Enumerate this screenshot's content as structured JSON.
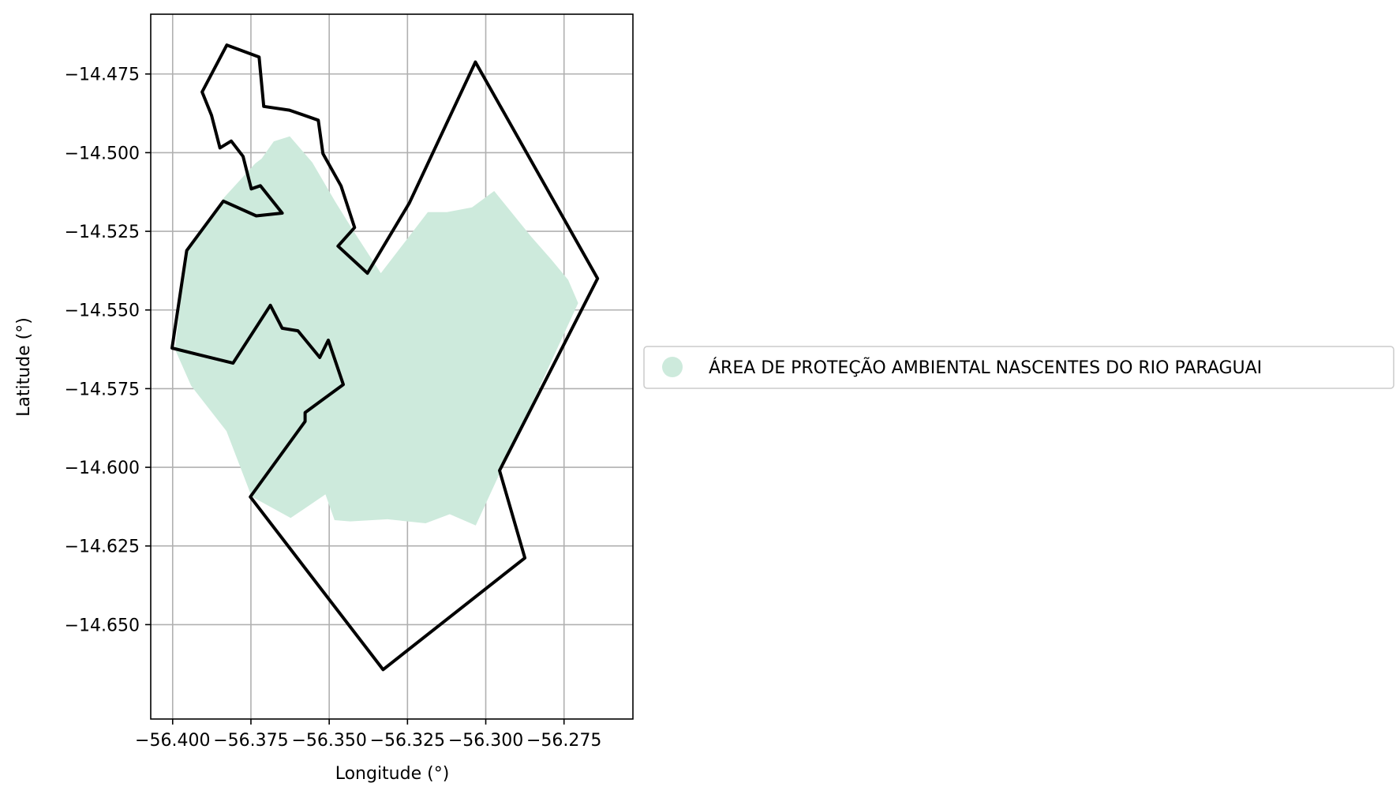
{
  "chart_data": {
    "type": "map",
    "title": "",
    "xlabel": "Longitude (°)",
    "ylabel": "Latitude (°)",
    "xlim": [
      -56.407,
      -56.253
    ],
    "ylim": [
      -14.68,
      -14.456
    ],
    "x_ticks": [
      -56.4,
      -56.375,
      -56.35,
      -56.325,
      -56.3,
      -56.275
    ],
    "x_tick_labels": [
      "−56.400",
      "−56.375",
      "−56.350",
      "−56.325",
      "−56.300",
      "−56.275"
    ],
    "y_ticks": [
      -14.475,
      -14.5,
      -14.525,
      -14.55,
      -14.575,
      -14.6,
      -14.625,
      -14.65
    ],
    "y_tick_labels": [
      "−14.475",
      "−14.500",
      "−14.525",
      "−14.550",
      "−14.575",
      "−14.600",
      "−14.625",
      "−14.650"
    ],
    "grid": true,
    "legend": {
      "placement": "right-center",
      "entries": [
        {
          "label": "ÁREA DE PROTEÇÃO AMBIENTAL NASCENTES DO RIO PARAGUAI",
          "color": "#cdeadc"
        }
      ]
    },
    "layers": [
      {
        "name": "ÁREA DE PROTEÇÃO AMBIENTAL NASCENTES DO RIO PARAGUAI",
        "kind": "filled-area",
        "color": "#cdeadc",
        "coordinates": [
          [
            -56.3716,
            -14.5019
          ],
          [
            -56.3677,
            -14.4964
          ],
          [
            -56.3626,
            -14.4948
          ],
          [
            -56.3554,
            -14.5031
          ],
          [
            -56.348,
            -14.5157
          ],
          [
            -56.3425,
            -14.5245
          ],
          [
            -56.3335,
            -14.5383
          ],
          [
            -56.3185,
            -14.5189
          ],
          [
            -56.3124,
            -14.5189
          ],
          [
            -56.3044,
            -14.5174
          ],
          [
            -56.2973,
            -14.5122
          ],
          [
            -56.2855,
            -14.5267
          ],
          [
            -56.2791,
            -14.5339
          ],
          [
            -56.2737,
            -14.5404
          ],
          [
            -56.2705,
            -14.5478
          ],
          [
            -56.3032,
            -14.6185
          ],
          [
            -56.3115,
            -14.6149
          ],
          [
            -56.3192,
            -14.6178
          ],
          [
            -56.3314,
            -14.6165
          ],
          [
            -56.3433,
            -14.6172
          ],
          [
            -56.3483,
            -14.6168
          ],
          [
            -56.3512,
            -14.6086
          ],
          [
            -56.3623,
            -14.6161
          ],
          [
            -56.3748,
            -14.6093
          ],
          [
            -56.3828,
            -14.5885
          ],
          [
            -56.3941,
            -14.5741
          ],
          [
            -56.3993,
            -14.5624
          ],
          [
            -56.3955,
            -14.5311
          ],
          [
            -56.3835,
            -14.5142
          ],
          [
            -56.3736,
            -14.5034
          ]
        ]
      },
      {
        "name": "boundary",
        "kind": "outline",
        "color": "#000000",
        "coordinates": [
          [
            -56.3827,
            -14.4658
          ],
          [
            -56.3724,
            -14.4696
          ],
          [
            -56.3709,
            -14.4853
          ],
          [
            -56.3627,
            -14.4865
          ],
          [
            -56.3535,
            -14.4897
          ],
          [
            -56.352,
            -14.5003
          ],
          [
            -56.3462,
            -14.5106
          ],
          [
            -56.3419,
            -14.5238
          ],
          [
            -56.3472,
            -14.5297
          ],
          [
            -56.3378,
            -14.5383
          ],
          [
            -56.3244,
            -14.516
          ],
          [
            -56.3033,
            -14.4712
          ],
          [
            -56.2643,
            -14.54
          ],
          [
            -56.2956,
            -14.601
          ],
          [
            -56.2875,
            -14.6288
          ],
          [
            -56.3328,
            -14.6643
          ],
          [
            -56.3752,
            -14.6094
          ],
          [
            -56.3577,
            -14.5854
          ],
          [
            -56.3577,
            -14.5826
          ],
          [
            -56.3455,
            -14.5737
          ],
          [
            -56.3503,
            -14.5596
          ],
          [
            -56.353,
            -14.5651
          ],
          [
            -56.36,
            -14.5566
          ],
          [
            -56.365,
            -14.5558
          ],
          [
            -56.3688,
            -14.5485
          ],
          [
            -56.3807,
            -14.5669
          ],
          [
            -56.4002,
            -14.5621
          ],
          [
            -56.3955,
            -14.5311
          ],
          [
            -56.3838,
            -14.5154
          ],
          [
            -56.3733,
            -14.5201
          ],
          [
            -56.365,
            -14.5192
          ],
          [
            -56.372,
            -14.5105
          ],
          [
            -56.3749,
            -14.5115
          ],
          [
            -56.3775,
            -14.5012
          ],
          [
            -56.3813,
            -14.4963
          ],
          [
            -56.3849,
            -14.4985
          ],
          [
            -56.3876,
            -14.4881
          ],
          [
            -56.3906,
            -14.4807
          ]
        ]
      }
    ]
  }
}
